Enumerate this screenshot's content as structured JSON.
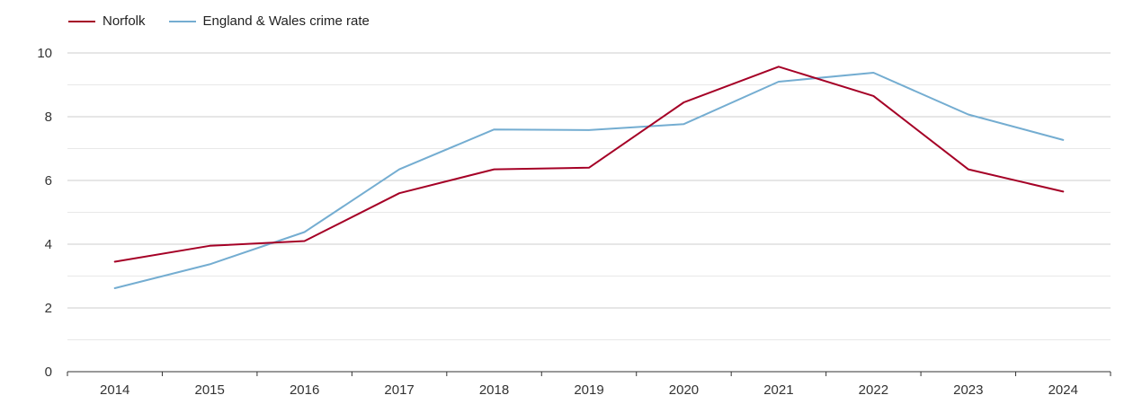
{
  "chart_data": {
    "type": "line",
    "categories": [
      "2014",
      "2015",
      "2016",
      "2017",
      "2018",
      "2019",
      "2020",
      "2021",
      "2022",
      "2023",
      "2024"
    ],
    "series": [
      {
        "name": "Norfolk",
        "color": "#a50026",
        "values": [
          3.45,
          3.95,
          4.1,
          5.6,
          6.35,
          6.4,
          8.45,
          9.57,
          8.65,
          6.35,
          5.65
        ]
      },
      {
        "name": "England & Wales crime rate",
        "color": "#74add1",
        "values": [
          2.62,
          3.37,
          4.38,
          6.35,
          7.6,
          7.58,
          7.77,
          9.1,
          9.38,
          8.07,
          7.27
        ]
      }
    ],
    "ylim": [
      0,
      10
    ],
    "yticks": [
      "0",
      "2",
      "4",
      "6",
      "8",
      "10"
    ],
    "grid": true,
    "legend_position": "top-left"
  }
}
